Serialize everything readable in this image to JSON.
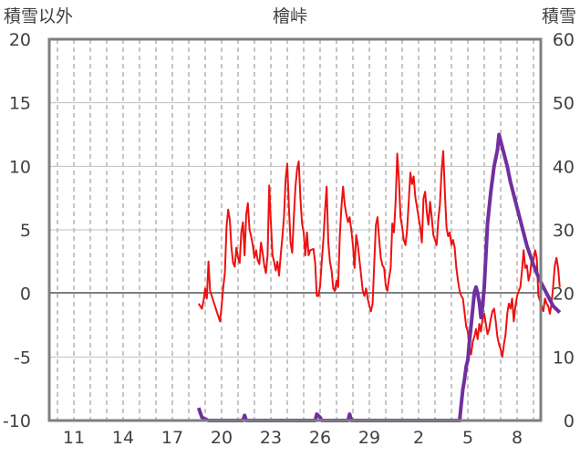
{
  "chart_data": {
    "type": "line",
    "title": "檜峠",
    "left_axis_label": "積雪以外",
    "right_axis_label": "積雪",
    "left_ticks": [
      "20",
      "15",
      "10",
      "5",
      "0",
      "-5",
      "-10"
    ],
    "right_ticks": [
      "60",
      "50",
      "40",
      "30",
      "20",
      "10",
      "0"
    ],
    "x_ticks": [
      "11",
      "14",
      "17",
      "20",
      "23",
      "26",
      "29",
      "2",
      "5",
      "8"
    ],
    "ylim_left": [
      -10,
      20
    ],
    "ylim_right": [
      0,
      60
    ],
    "xlim": [
      8.5,
      40.6
    ],
    "x_tick_values": [
      11,
      14,
      17,
      20,
      23,
      26,
      29,
      32,
      35,
      38
    ],
    "grid": "vertical dashed, daily",
    "zero_line": 0,
    "series": [
      {
        "axis": "left",
        "color": "#ee1111",
        "points": [
          [
            18.6,
            -0.8
          ],
          [
            18.8,
            -1.2
          ],
          [
            18.9,
            -0.6
          ],
          [
            19.0,
            0.4
          ],
          [
            19.1,
            -0.4
          ],
          [
            19.2,
            2.5
          ],
          [
            19.3,
            0.2
          ],
          [
            19.5,
            -0.6
          ],
          [
            19.7,
            -1.4
          ],
          [
            19.9,
            -2.2
          ],
          [
            20.0,
            -1.0
          ],
          [
            20.1,
            0.5
          ],
          [
            20.2,
            1.6
          ],
          [
            20.3,
            5.2
          ],
          [
            20.4,
            6.6
          ],
          [
            20.5,
            5.8
          ],
          [
            20.6,
            3.6
          ],
          [
            20.7,
            2.4
          ],
          [
            20.8,
            2.1
          ],
          [
            20.9,
            3.6
          ],
          [
            21.0,
            2.8
          ],
          [
            21.1,
            2.4
          ],
          [
            21.2,
            4.8
          ],
          [
            21.3,
            5.6
          ],
          [
            21.4,
            3.0
          ],
          [
            21.5,
            6.2
          ],
          [
            21.6,
            7.1
          ],
          [
            21.7,
            5.0
          ],
          [
            21.8,
            4.5
          ],
          [
            21.9,
            3.8
          ],
          [
            22.0,
            2.8
          ],
          [
            22.1,
            3.4
          ],
          [
            22.2,
            2.6
          ],
          [
            22.3,
            2.3
          ],
          [
            22.4,
            4.0
          ],
          [
            22.5,
            3.2
          ],
          [
            22.6,
            2.2
          ],
          [
            22.7,
            1.6
          ],
          [
            22.8,
            3.0
          ],
          [
            22.9,
            8.5
          ],
          [
            23.0,
            5.6
          ],
          [
            23.1,
            3.0
          ],
          [
            23.2,
            2.5
          ],
          [
            23.3,
            1.8
          ],
          [
            23.4,
            2.5
          ],
          [
            23.5,
            1.4
          ],
          [
            23.6,
            3.0
          ],
          [
            23.7,
            4.4
          ],
          [
            23.8,
            6.0
          ],
          [
            23.9,
            9.0
          ],
          [
            24.0,
            10.2
          ],
          [
            24.1,
            6.8
          ],
          [
            24.2,
            4.0
          ],
          [
            24.3,
            3.2
          ],
          [
            24.4,
            6.0
          ],
          [
            24.5,
            8.4
          ],
          [
            24.6,
            9.8
          ],
          [
            24.7,
            10.4
          ],
          [
            24.8,
            7.5
          ],
          [
            24.9,
            5.5
          ],
          [
            25.0,
            4.8
          ],
          [
            25.1,
            3.0
          ],
          [
            25.2,
            4.8
          ],
          [
            25.3,
            3.0
          ],
          [
            25.4,
            3.4
          ],
          [
            25.6,
            3.5
          ],
          [
            25.7,
            2.4
          ],
          [
            25.8,
            -0.2
          ],
          [
            25.9,
            -0.2
          ],
          [
            26.0,
            0.6
          ],
          [
            26.1,
            2.5
          ],
          [
            26.2,
            4.2
          ],
          [
            26.3,
            6.5
          ],
          [
            26.4,
            8.4
          ],
          [
            26.5,
            4.0
          ],
          [
            26.6,
            2.5
          ],
          [
            26.7,
            1.8
          ],
          [
            26.8,
            0.4
          ],
          [
            26.9,
            0.2
          ],
          [
            27.0,
            1.0
          ],
          [
            27.1,
            0.5
          ],
          [
            27.2,
            4.5
          ],
          [
            27.3,
            6.8
          ],
          [
            27.4,
            8.4
          ],
          [
            27.5,
            7.0
          ],
          [
            27.6,
            6.2
          ],
          [
            27.7,
            5.6
          ],
          [
            27.8,
            6.0
          ],
          [
            27.9,
            5.0
          ],
          [
            28.0,
            3.8
          ],
          [
            28.1,
            2.0
          ],
          [
            28.2,
            4.6
          ],
          [
            28.3,
            3.8
          ],
          [
            28.4,
            2.6
          ],
          [
            28.5,
            1.4
          ],
          [
            28.6,
            0.2
          ],
          [
            28.7,
            -0.2
          ],
          [
            28.8,
            0.4
          ],
          [
            28.9,
            -0.4
          ],
          [
            29.0,
            -1.0
          ],
          [
            29.1,
            -1.4
          ],
          [
            29.2,
            -0.8
          ],
          [
            29.3,
            2.4
          ],
          [
            29.4,
            5.4
          ],
          [
            29.5,
            6.0
          ],
          [
            29.6,
            4.2
          ],
          [
            29.7,
            2.8
          ],
          [
            29.8,
            2.2
          ],
          [
            29.9,
            2.0
          ],
          [
            30.0,
            0.6
          ],
          [
            30.1,
            0.2
          ],
          [
            30.2,
            1.2
          ],
          [
            30.3,
            2.0
          ],
          [
            30.4,
            5.5
          ],
          [
            30.5,
            4.8
          ],
          [
            30.6,
            7.2
          ],
          [
            30.7,
            11.0
          ],
          [
            30.8,
            9.0
          ],
          [
            30.9,
            6.0
          ],
          [
            31.0,
            5.2
          ],
          [
            31.1,
            4.2
          ],
          [
            31.2,
            3.8
          ],
          [
            31.3,
            5.0
          ],
          [
            31.4,
            7.2
          ],
          [
            31.5,
            9.5
          ],
          [
            31.6,
            8.6
          ],
          [
            31.7,
            9.2
          ],
          [
            31.8,
            7.6
          ],
          [
            31.9,
            6.8
          ],
          [
            32.0,
            6.0
          ],
          [
            32.1,
            5.2
          ],
          [
            32.2,
            4.0
          ],
          [
            32.3,
            7.5
          ],
          [
            32.4,
            8.0
          ],
          [
            32.5,
            6.4
          ],
          [
            32.6,
            5.4
          ],
          [
            32.7,
            7.2
          ],
          [
            32.8,
            6.0
          ],
          [
            32.9,
            4.6
          ],
          [
            33.0,
            4.2
          ],
          [
            33.1,
            3.8
          ],
          [
            33.2,
            5.8
          ],
          [
            33.3,
            7.0
          ],
          [
            33.4,
            9.6
          ],
          [
            33.5,
            11.2
          ],
          [
            33.6,
            8.0
          ],
          [
            33.7,
            5.2
          ],
          [
            33.8,
            4.5
          ],
          [
            33.9,
            4.8
          ],
          [
            34.0,
            3.8
          ],
          [
            34.1,
            4.2
          ],
          [
            34.2,
            3.6
          ],
          [
            34.3,
            2.0
          ],
          [
            34.4,
            1.0
          ],
          [
            34.5,
            0.2
          ],
          [
            34.6,
            -0.2
          ],
          [
            34.7,
            -0.4
          ],
          [
            34.9,
            -2.6
          ],
          [
            35.0,
            -3.0
          ],
          [
            35.1,
            -4.2
          ],
          [
            35.2,
            -4.8
          ],
          [
            35.3,
            -3.8
          ],
          [
            35.4,
            -3.4
          ],
          [
            35.5,
            -2.8
          ],
          [
            35.6,
            -3.6
          ],
          [
            35.7,
            -2.4
          ],
          [
            35.8,
            -3.0
          ],
          [
            35.9,
            -2.0
          ],
          [
            36.0,
            -1.6
          ],
          [
            36.1,
            -2.4
          ],
          [
            36.2,
            -3.2
          ],
          [
            36.3,
            -2.8
          ],
          [
            36.4,
            -2.0
          ],
          [
            36.5,
            -1.4
          ],
          [
            36.6,
            -1.2
          ],
          [
            36.7,
            -2.2
          ],
          [
            36.8,
            -3.4
          ],
          [
            36.9,
            -4.0
          ],
          [
            37.0,
            -4.4
          ],
          [
            37.1,
            -5.0
          ],
          [
            37.2,
            -4.0
          ],
          [
            37.3,
            -3.2
          ],
          [
            37.4,
            -1.6
          ],
          [
            37.5,
            -0.8
          ],
          [
            37.6,
            -1.2
          ],
          [
            37.7,
            -0.4
          ],
          [
            37.8,
            -2.2
          ],
          [
            37.9,
            -1.0
          ],
          [
            38.0,
            -0.2
          ],
          [
            38.1,
            0.2
          ],
          [
            38.2,
            0.5
          ],
          [
            38.3,
            1.8
          ],
          [
            38.4,
            3.4
          ],
          [
            38.5,
            2.0
          ],
          [
            38.6,
            2.2
          ],
          [
            38.7,
            1.0
          ],
          [
            38.8,
            1.6
          ],
          [
            38.9,
            2.8
          ],
          [
            39.0,
            2.6
          ],
          [
            39.1,
            3.4
          ],
          [
            39.2,
            2.8
          ],
          [
            39.3,
            -0.2
          ],
          [
            39.4,
            -0.6
          ],
          [
            39.5,
            -1.0
          ],
          [
            39.6,
            -1.4
          ],
          [
            39.7,
            -0.4
          ],
          [
            39.8,
            -0.8
          ],
          [
            39.9,
            -1.0
          ],
          [
            40.0,
            -1.6
          ],
          [
            40.1,
            -0.8
          ],
          [
            40.2,
            0.6
          ],
          [
            40.3,
            2.2
          ],
          [
            40.4,
            2.8
          ],
          [
            40.5,
            2.0
          ],
          [
            40.6,
            0.5
          ]
        ]
      },
      {
        "axis": "right",
        "color": "#7030a0",
        "points": [
          [
            18.6,
            2.0
          ],
          [
            18.8,
            0.5
          ],
          [
            19.2,
            0
          ],
          [
            21.3,
            0
          ],
          [
            21.4,
            0.8
          ],
          [
            21.5,
            0
          ],
          [
            25.7,
            0
          ],
          [
            25.8,
            1.0
          ],
          [
            26.0,
            0.5
          ],
          [
            26.1,
            0
          ],
          [
            27.7,
            0
          ],
          [
            27.8,
            1.0
          ],
          [
            27.9,
            0
          ],
          [
            34.1,
            0
          ],
          [
            34.5,
            0
          ],
          [
            34.6,
            2.6
          ],
          [
            34.7,
            5.0
          ],
          [
            34.8,
            6.5
          ],
          [
            34.9,
            8.5
          ],
          [
            35.0,
            9.5
          ],
          [
            35.1,
            12.5
          ],
          [
            35.2,
            15.0
          ],
          [
            35.4,
            20.2
          ],
          [
            35.5,
            21.0
          ],
          [
            35.6,
            20.0
          ],
          [
            35.7,
            18.6
          ],
          [
            35.8,
            16.2
          ],
          [
            35.9,
            18.0
          ],
          [
            36.0,
            21.0
          ],
          [
            36.1,
            26.0
          ],
          [
            36.2,
            31.0
          ],
          [
            36.4,
            36.0
          ],
          [
            36.6,
            40.0
          ],
          [
            36.8,
            42.5
          ],
          [
            36.9,
            45.0
          ],
          [
            37.0,
            44.0
          ],
          [
            37.1,
            43.0
          ],
          [
            37.2,
            42.0
          ],
          [
            37.4,
            40.0
          ],
          [
            37.6,
            37.5
          ],
          [
            37.8,
            35.5
          ],
          [
            38.0,
            33.5
          ],
          [
            38.2,
            31.5
          ],
          [
            38.4,
            29.5
          ],
          [
            38.6,
            27.5
          ],
          [
            38.8,
            26.0
          ],
          [
            39.0,
            24.5
          ],
          [
            39.2,
            23.2
          ],
          [
            39.4,
            22.0
          ],
          [
            39.6,
            21.0
          ],
          [
            39.8,
            20.0
          ],
          [
            40.0,
            19.0
          ],
          [
            40.2,
            18.0
          ],
          [
            40.4,
            17.5
          ],
          [
            40.6,
            17.0
          ]
        ]
      }
    ]
  }
}
